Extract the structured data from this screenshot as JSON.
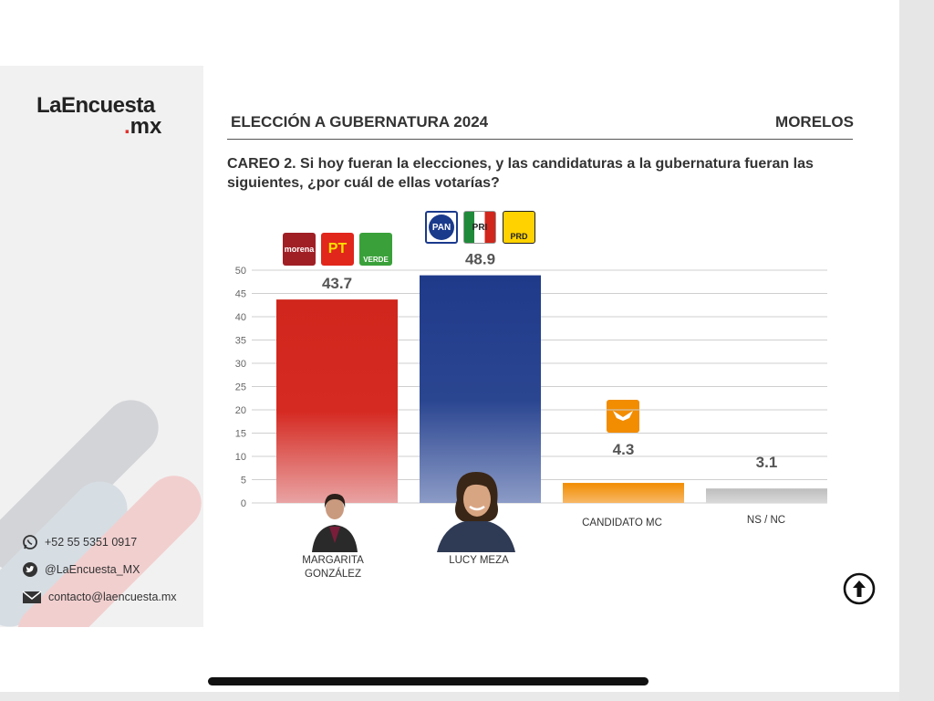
{
  "brand": {
    "name_top": "LaEncuesta",
    "name_dot": ".",
    "name_bottom": "mx"
  },
  "header": {
    "title": "ELECCIÓN A GUBERNATURA 2024",
    "region": "MORELOS"
  },
  "question": "CAREO 2. Si hoy fueran la elecciones, y las candidaturas a la gubernatura fueran las siguientes, ¿por cuál de ellas votarías?",
  "contact": {
    "whatsapp": "+52 55 5351 0917",
    "twitter": "@LaEncuesta_MX",
    "email": "contacto@laencuesta.mx"
  },
  "parties": {
    "morena": "morena",
    "pt": "PT",
    "verde": "VERDE",
    "pan": "PAN",
    "pri": "PRI",
    "prd": "PRD"
  },
  "chart_data": {
    "type": "bar",
    "categories": [
      "MARGARITA GONZÁLEZ",
      "LUCY MEZA",
      "CANDIDATO MC",
      "NS / NC"
    ],
    "values": [
      43.7,
      48.9,
      4.3,
      3.1
    ],
    "value_labels": [
      "43.7",
      "48.9",
      "4.3",
      "3.1"
    ],
    "ylim": [
      0,
      50
    ],
    "yticks": [
      0,
      5,
      10,
      15,
      20,
      25,
      30,
      35,
      40,
      45,
      50
    ],
    "grid": true,
    "colors": [
      "#d0261c",
      "#1f3a8a",
      "#f39200",
      "#c8c8c8"
    ]
  },
  "colors": {
    "accent_red": "#e0322b",
    "text": "#333333"
  },
  "icons": {
    "whatsapp": "whatsapp-icon",
    "twitter": "twitter-icon",
    "email": "mail-icon",
    "scroll_top": "arrow-up-circle-icon"
  }
}
